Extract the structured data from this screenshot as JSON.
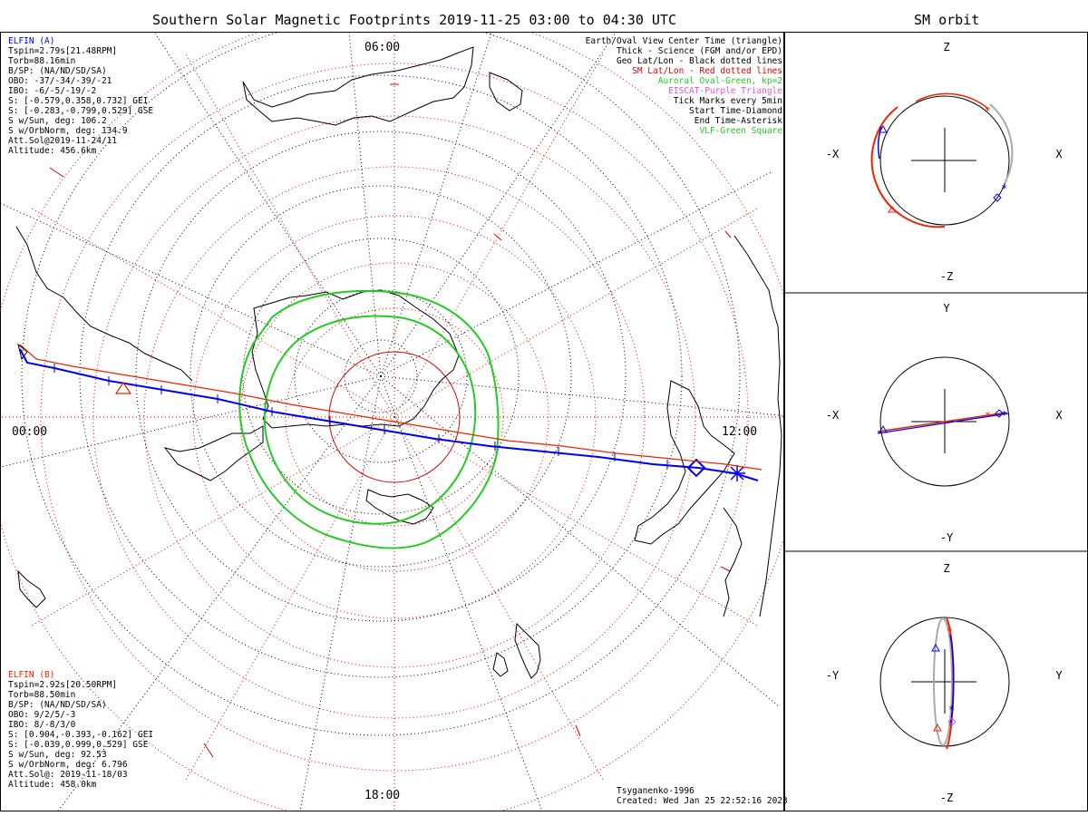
{
  "main_title": "Southern Solar Magnetic Footprints 2019-11-25 03:00 to 04:30 UTC",
  "side_title": "SM orbit",
  "mlt_labels": {
    "top": "06:00",
    "left": "00:00",
    "right": "12:00",
    "bottom": "18:00"
  },
  "elfin_a": {
    "name": "ELFIN (A)",
    "lines": [
      "Tspin=2.79s[21.48RPM]",
      "Torb=88.16min",
      "B/SP: (NA/ND/SD/SA)",
      "OBO: -37/-34/-39/-21",
      "IBO: -6/-5/-19/-2",
      "S: [-0.579,0.358,0.732] GEI",
      "S: [-0.283,-0.799,0.529] GSE",
      "S w/Sun, deg: 106.2",
      "S w/OrbNorm, deg: 134.9",
      "Att.Sol@2019-11-24/11",
      "Altitude: 456.6km"
    ]
  },
  "elfin_b": {
    "name": "ELFIN (B)",
    "lines": [
      "Tspin=2.92s[20.50RPM]",
      "Torb=88.50min",
      "B/SP: (NA/ND/SD/SA)",
      "OBO: 9/2/5/-3",
      "IBO: 8/-8/3/0",
      "S: [0.904,-0.393,-0.162] GEI",
      "S: [-0.039,0.999,0.529] GSE",
      "S w/Sun, deg: 92.53",
      "S w/OrbNorm, deg: 6.796",
      "Att.Sol@: 2019-11-18/03",
      "Altitude: 458.0km"
    ]
  },
  "legend": [
    {
      "text": "Earth/Oval View Center Time (triangle)",
      "color": "#000000"
    },
    {
      "text": "Thick - Science (FGM and/or EPD)",
      "color": "#000000"
    },
    {
      "text": "Geo Lat/Lon - Black dotted lines",
      "color": "#000000"
    },
    {
      "text": "SM Lat/Lon - Red dotted lines",
      "color": "#e00000"
    },
    {
      "text": "Auroral Oval-Green, kp=2",
      "color": "#22cc22"
    },
    {
      "text": "EISCAT-Purple Triangle",
      "color": "#dd55dd"
    },
    {
      "text": "Tick Marks every 5min",
      "color": "#000000"
    },
    {
      "text": "Start Time-Diamond",
      "color": "#000000"
    },
    {
      "text": "End Time-Asterisk",
      "color": "#000000"
    },
    {
      "text": "VLF-Green Square",
      "color": "#22cc22"
    }
  ],
  "credits": {
    "model": "Tsyganenko-1996",
    "created": "Created: Wed Jan 25 22:52:16 2023"
  },
  "orbit_panels": [
    {
      "id": "xz",
      "h_pos": "X",
      "h_neg": "-X",
      "v_pos": "Z",
      "v_neg": "-Z"
    },
    {
      "id": "xy",
      "h_pos": "X",
      "h_neg": "-X",
      "v_pos": "Y",
      "v_neg": "-Y"
    },
    {
      "id": "yz",
      "h_pos": "Y",
      "h_neg": "-Y",
      "v_pos": "Z",
      "v_neg": "-Z"
    }
  ],
  "colors": {
    "elfin_a": "#0000ee",
    "elfin_b": "#ee2200",
    "sm_grid": "#e00000",
    "oval": "#22cc22",
    "eiscat": "#dd55dd"
  }
}
